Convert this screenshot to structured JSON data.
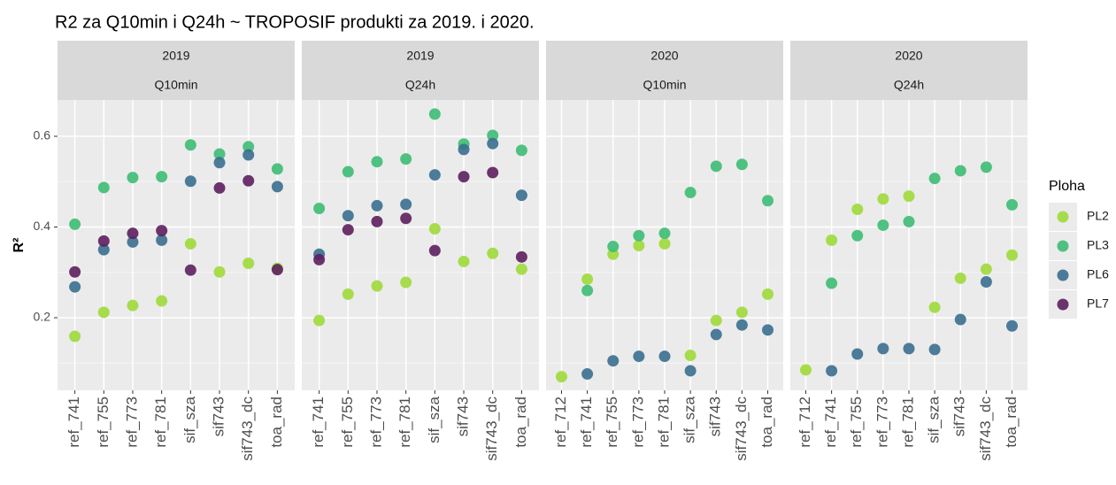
{
  "title": "R2 za Q10min i Q24h ~ TROPOSIF produkti za 2019. i 2020.",
  "y_label": "R²",
  "legend": {
    "title": "Ploha",
    "items": [
      {
        "name": "PL2",
        "color": "#9fda3a"
      },
      {
        "name": "PL3",
        "color": "#3dbc74"
      },
      {
        "name": "PL6",
        "color": "#3a6f8f"
      },
      {
        "name": "PL7",
        "color": "#5d1f5e"
      }
    ]
  },
  "ylim": [
    0.04,
    0.68
  ],
  "yticks": [
    0.2,
    0.4,
    0.6
  ],
  "grid": true,
  "chart_data": [
    {
      "type": "scatter",
      "strips": [
        "2019",
        "Q10min"
      ],
      "categories": [
        "ref_741",
        "ref_755",
        "ref_773",
        "ref_781",
        "sif_sza",
        "sif743",
        "sif743_dc",
        "toa_rad"
      ],
      "series": [
        {
          "values": [
            0.159,
            0.212,
            0.227,
            0.237,
            0.363,
            0.301,
            0.32,
            0.309
          ]
        },
        {
          "values": [
            0.406,
            0.487,
            0.509,
            0.511,
            0.581,
            0.561,
            0.577,
            0.528
          ]
        },
        {
          "values": [
            0.268,
            0.35,
            0.367,
            0.371,
            0.501,
            0.542,
            0.559,
            0.489
          ]
        },
        {
          "values": [
            0.301,
            0.369,
            0.386,
            0.392,
            0.305,
            0.486,
            0.502,
            0.306
          ]
        }
      ]
    },
    {
      "type": "scatter",
      "strips": [
        "2019",
        "Q24h"
      ],
      "categories": [
        "ref_741",
        "ref_755",
        "ref_773",
        "ref_781",
        "sif_sza",
        "sif743",
        "sif743_dc",
        "toa_rad"
      ],
      "series": [
        {
          "values": [
            0.194,
            0.252,
            0.27,
            0.278,
            0.396,
            0.324,
            0.342,
            0.307
          ]
        },
        {
          "values": [
            0.441,
            0.522,
            0.544,
            0.55,
            0.649,
            0.583,
            0.602,
            0.569
          ]
        },
        {
          "values": [
            0.34,
            0.425,
            0.447,
            0.45,
            0.515,
            0.571,
            0.584,
            0.47
          ]
        },
        {
          "values": [
            0.328,
            0.394,
            0.412,
            0.419,
            0.348,
            0.511,
            0.52,
            0.334
          ]
        }
      ]
    },
    {
      "type": "scatter",
      "strips": [
        "2020",
        "Q10min"
      ],
      "categories": [
        "ref_712",
        "ref_741",
        "ref_755",
        "ref_773",
        "ref_781",
        "sif_sza",
        "sif743",
        "sif743_dc",
        "toa_rad"
      ],
      "series": [
        {
          "values": [
            0.07,
            0.285,
            0.34,
            0.359,
            0.363,
            0.117,
            0.194,
            0.212,
            0.252
          ]
        },
        {
          "values": [
            null,
            0.26,
            0.357,
            0.381,
            0.386,
            0.476,
            0.534,
            0.538,
            0.458
          ]
        },
        {
          "values": [
            null,
            0.076,
            0.105,
            0.115,
            0.115,
            0.083,
            0.163,
            0.184,
            0.173
          ]
        },
        {
          "values": [
            null,
            null,
            null,
            null,
            null,
            null,
            null,
            null,
            null
          ]
        }
      ]
    },
    {
      "type": "scatter",
      "strips": [
        "2020",
        "Q24h"
      ],
      "categories": [
        "ref_712",
        "ref_741",
        "ref_755",
        "ref_773",
        "ref_781",
        "sif_sza",
        "sif743",
        "sif743_dc",
        "toa_rad"
      ],
      "series": [
        {
          "values": [
            0.085,
            0.371,
            0.439,
            0.462,
            0.468,
            0.223,
            0.287,
            0.307,
            0.338
          ]
        },
        {
          "values": [
            null,
            0.276,
            0.381,
            0.404,
            0.412,
            0.507,
            0.524,
            0.532,
            0.449
          ]
        },
        {
          "values": [
            null,
            0.083,
            0.12,
            0.132,
            0.132,
            0.13,
            0.196,
            0.279,
            0.182
          ]
        },
        {
          "values": [
            null,
            null,
            null,
            null,
            null,
            null,
            null,
            null,
            null
          ]
        }
      ]
    }
  ]
}
